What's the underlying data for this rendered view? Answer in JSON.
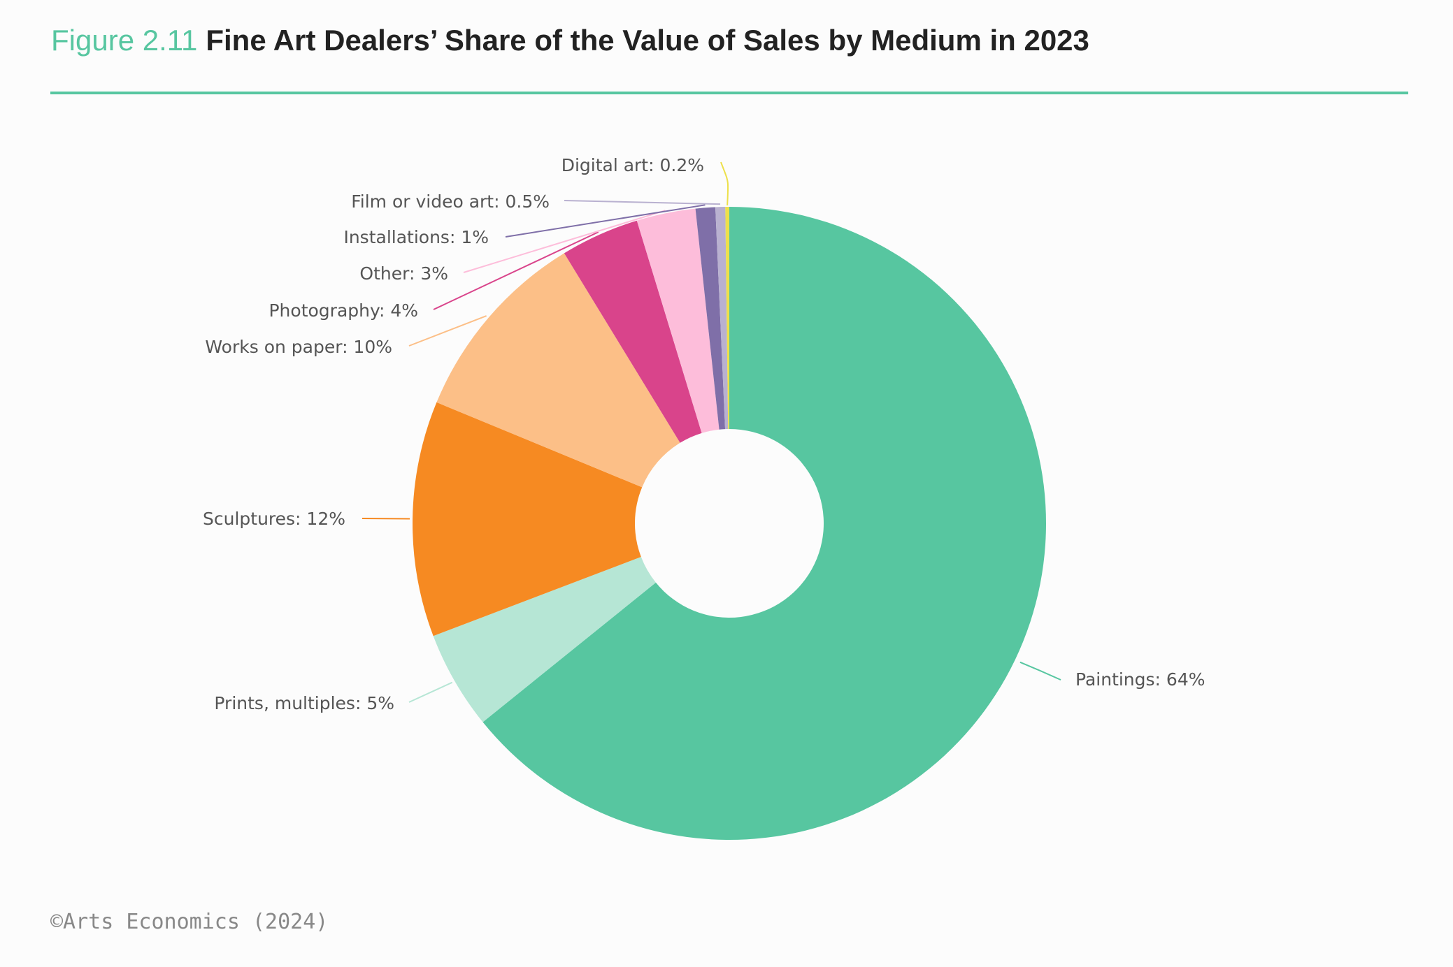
{
  "figure": {
    "number": "Figure 2.11",
    "title": "Fine Art Dealers’ Share of the Value of Sales by Medium in 2023"
  },
  "credit": "©Arts Economics (2024)",
  "chart_data": {
    "type": "pie",
    "variant": "donut",
    "title": "Fine Art Dealers’ Share of the Value of Sales by Medium in 2023",
    "unit": "%",
    "start_at": "top",
    "direction": "clockwise",
    "slices": [
      {
        "name": "Paintings",
        "label": "Paintings: 64%",
        "value": 64,
        "color": "#57c6a0"
      },
      {
        "name": "Prints, multiples",
        "label": "Prints, multiples: 5%",
        "value": 5,
        "color": "#b6e6d5"
      },
      {
        "name": "Sculptures",
        "label": "Sculptures: 12%",
        "value": 12,
        "color": "#f68a22"
      },
      {
        "name": "Works on paper",
        "label": "Works on paper: 10%",
        "value": 10,
        "color": "#fcbf87"
      },
      {
        "name": "Photography",
        "label": "Photography: 4%",
        "value": 4,
        "color": "#d9448b"
      },
      {
        "name": "Other",
        "label": "Other: 3%",
        "value": 3,
        "color": "#fdbdda"
      },
      {
        "name": "Installations",
        "label": "Installations: 1%",
        "value": 1,
        "color": "#7f6fa8"
      },
      {
        "name": "Film or video art",
        "label": "Film or video art: 0.5%",
        "value": 0.5,
        "color": "#b9b1d0"
      },
      {
        "name": "Digital art",
        "label": "Digital art: 0.2%",
        "value": 0.2,
        "color": "#ede04a"
      }
    ]
  }
}
